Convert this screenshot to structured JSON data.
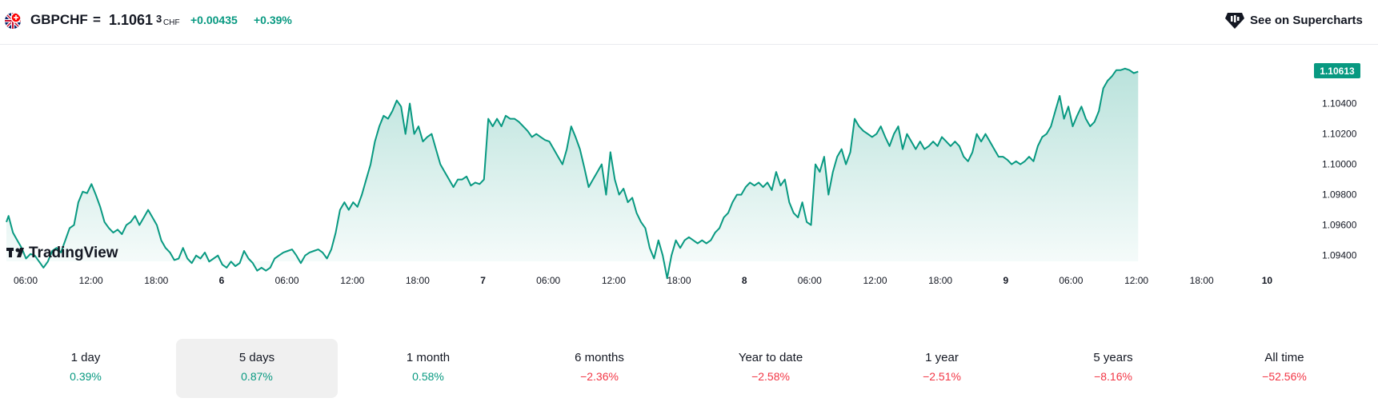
{
  "header": {
    "symbol": "GBPCHF",
    "separator": "=",
    "price_main": "1.1061",
    "price_sup": "3",
    "currency": "CHF",
    "change": "+0.00435",
    "change_pct": "+0.39%",
    "positive_color": "#089981",
    "flag_icon": "gb-ch-flag-icon",
    "supercharts_label": "See on Supercharts",
    "supercharts_icon": "supercharts-icon"
  },
  "chart_data": {
    "type": "area",
    "x_ticks": [
      "06:00",
      "12:00",
      "18:00",
      "6",
      "06:00",
      "12:00",
      "18:00",
      "7",
      "06:00",
      "12:00",
      "18:00",
      "8",
      "06:00",
      "12:00",
      "18:00",
      "9",
      "06:00",
      "12:00",
      "18:00",
      "10"
    ],
    "bold_ticks": [
      "6",
      "7",
      "8",
      "9",
      "10"
    ],
    "y_ticks": [
      "1.09400",
      "1.09600",
      "1.09800",
      "1.10000",
      "1.10200",
      "1.10400"
    ],
    "ylim": [
      1.0925,
      1.1075
    ],
    "last_price_label": "1.10613",
    "line_color": "#089981",
    "fill_color": "#089981",
    "grid": false,
    "watermark": "TradingView",
    "x_unit": "hours from 00:00 of day 5",
    "series": [
      {
        "values": [
          [
            1.5,
            1.0962
          ],
          [
            2,
            1.0966
          ],
          [
            3,
            1.0955
          ],
          [
            4,
            1.095
          ],
          [
            5,
            1.0945
          ],
          [
            6,
            1.0938
          ],
          [
            7,
            1.0941
          ],
          [
            8,
            1.094
          ],
          [
            9,
            1.0936
          ],
          [
            10,
            1.0932
          ],
          [
            11,
            1.0936
          ],
          [
            12,
            1.0943
          ],
          [
            13,
            1.0945
          ],
          [
            14,
            1.0942
          ],
          [
            15,
            1.095
          ],
          [
            16,
            1.0958
          ],
          [
            17,
            1.096
          ],
          [
            18,
            1.0975
          ],
          [
            19,
            1.0982
          ],
          [
            20,
            1.0981
          ],
          [
            21,
            1.0987
          ],
          [
            22,
            1.098
          ],
          [
            23,
            1.0972
          ],
          [
            24,
            1.0962
          ],
          [
            25,
            1.0958
          ],
          [
            26,
            1.0955
          ],
          [
            27,
            1.0957
          ],
          [
            28,
            1.0954
          ],
          [
            29,
            1.096
          ],
          [
            30,
            1.0962
          ],
          [
            31,
            1.0966
          ],
          [
            32,
            1.096
          ],
          [
            33,
            1.0965
          ],
          [
            34,
            1.097
          ],
          [
            35,
            1.0965
          ],
          [
            36,
            1.096
          ],
          [
            37,
            1.095
          ],
          [
            38,
            1.0945
          ],
          [
            39,
            1.0942
          ],
          [
            40,
            1.0937
          ],
          [
            41,
            1.0938
          ],
          [
            42,
            1.0945
          ],
          [
            43,
            1.0938
          ],
          [
            44,
            1.0935
          ],
          [
            45,
            1.094
          ],
          [
            46,
            1.0938
          ],
          [
            47,
            1.0942
          ],
          [
            48,
            1.0936
          ],
          [
            49,
            1.0938
          ],
          [
            50,
            1.094
          ],
          [
            51,
            1.0934
          ],
          [
            52,
            1.0932
          ],
          [
            53,
            1.0936
          ],
          [
            54,
            1.0933
          ],
          [
            55,
            1.0935
          ],
          [
            56,
            1.0943
          ],
          [
            57,
            1.0938
          ],
          [
            58,
            1.0935
          ],
          [
            59,
            1.093
          ],
          [
            60,
            1.0932
          ],
          [
            61,
            1.093
          ],
          [
            62,
            1.0932
          ],
          [
            63,
            1.0938
          ],
          [
            64,
            1.094
          ],
          [
            65,
            1.0942
          ],
          [
            66,
            1.0943
          ],
          [
            67,
            1.0944
          ],
          [
            68,
            1.094
          ],
          [
            69,
            1.0935
          ],
          [
            70,
            1.094
          ],
          [
            71,
            1.0942
          ],
          [
            72,
            1.0943
          ],
          [
            73,
            1.0944
          ],
          [
            74,
            1.0942
          ],
          [
            75,
            1.0938
          ],
          [
            76,
            1.0944
          ],
          [
            77,
            1.0955
          ],
          [
            78,
            1.097
          ],
          [
            79,
            1.0975
          ],
          [
            80,
            1.097
          ],
          [
            81,
            1.0975
          ],
          [
            82,
            1.0972
          ],
          [
            83,
            1.098
          ],
          [
            84,
            1.099
          ],
          [
            85,
            1.1
          ],
          [
            86,
            1.1015
          ],
          [
            87,
            1.1025
          ],
          [
            88,
            1.1032
          ],
          [
            89,
            1.103
          ],
          [
            90,
            1.1035
          ],
          [
            91,
            1.1042
          ],
          [
            92,
            1.1038
          ],
          [
            93,
            1.102
          ],
          [
            94,
            1.104
          ],
          [
            95,
            1.102
          ],
          [
            96,
            1.1025
          ],
          [
            97,
            1.1015
          ],
          [
            98,
            1.1018
          ],
          [
            99,
            1.102
          ],
          [
            100,
            1.101
          ],
          [
            101,
            1.1
          ],
          [
            102,
            1.0995
          ],
          [
            103,
            1.099
          ],
          [
            104,
            1.0985
          ],
          [
            105,
            1.099
          ],
          [
            106,
            1.099
          ],
          [
            107,
            1.0992
          ],
          [
            108,
            1.0986
          ],
          [
            109,
            1.0988
          ],
          [
            110,
            1.0987
          ],
          [
            111,
            1.099
          ],
          [
            112,
            1.103
          ],
          [
            113,
            1.1025
          ],
          [
            114,
            1.103
          ],
          [
            115,
            1.1025
          ],
          [
            116,
            1.1032
          ],
          [
            117,
            1.103
          ],
          [
            118,
            1.103
          ],
          [
            119,
            1.1028
          ],
          [
            120,
            1.1025
          ],
          [
            121,
            1.1022
          ],
          [
            122,
            1.1018
          ],
          [
            123,
            1.102
          ],
          [
            124,
            1.1018
          ],
          [
            125,
            1.1016
          ],
          [
            126,
            1.1015
          ],
          [
            127,
            1.101
          ],
          [
            128,
            1.1005
          ],
          [
            129,
            1.1
          ],
          [
            130,
            1.101
          ],
          [
            131,
            1.1025
          ],
          [
            132,
            1.1018
          ],
          [
            133,
            1.101
          ],
          [
            134,
            1.0998
          ],
          [
            135,
            1.0985
          ],
          [
            136,
            1.099
          ],
          [
            137,
            1.0995
          ],
          [
            138,
            1.1
          ],
          [
            139,
            1.098
          ],
          [
            140,
            1.1008
          ],
          [
            141,
            1.099
          ],
          [
            142,
            1.098
          ],
          [
            143,
            1.0984
          ],
          [
            144,
            1.0975
          ],
          [
            145,
            1.0978
          ],
          [
            146,
            1.0968
          ],
          [
            147,
            1.0962
          ],
          [
            148,
            1.0958
          ],
          [
            149,
            1.0945
          ],
          [
            150,
            1.0938
          ],
          [
            151,
            1.095
          ],
          [
            152,
            1.094
          ],
          [
            153,
            1.0925
          ],
          [
            154,
            1.094
          ],
          [
            155,
            1.095
          ],
          [
            156,
            1.0945
          ],
          [
            157,
            1.095
          ],
          [
            158,
            1.0952
          ],
          [
            159,
            1.095
          ],
          [
            160,
            1.0948
          ],
          [
            161,
            1.095
          ],
          [
            162,
            1.0948
          ],
          [
            163,
            1.095
          ],
          [
            164,
            1.0955
          ],
          [
            165,
            1.0958
          ],
          [
            166,
            1.0965
          ],
          [
            167,
            1.0968
          ],
          [
            168,
            1.0975
          ],
          [
            169,
            1.098
          ],
          [
            170,
            1.098
          ],
          [
            171,
            1.0985
          ],
          [
            172,
            1.0988
          ],
          [
            173,
            1.0986
          ],
          [
            174,
            1.0988
          ],
          [
            175,
            1.0985
          ],
          [
            176,
            1.0988
          ],
          [
            177,
            1.0983
          ],
          [
            178,
            1.0995
          ],
          [
            179,
            1.0986
          ],
          [
            180,
            1.099
          ],
          [
            181,
            1.0975
          ],
          [
            182,
            1.0968
          ],
          [
            183,
            1.0965
          ],
          [
            184,
            1.0975
          ],
          [
            185,
            1.0962
          ],
          [
            186,
            1.096
          ],
          [
            187,
            1.1
          ],
          [
            188,
            1.0995
          ],
          [
            189,
            1.1005
          ],
          [
            190,
            1.098
          ],
          [
            191,
            1.0995
          ],
          [
            192,
            1.1005
          ],
          [
            193,
            1.101
          ],
          [
            194,
            1.1
          ],
          [
            195,
            1.1008
          ],
          [
            196,
            1.103
          ],
          [
            197,
            1.1025
          ],
          [
            198,
            1.1022
          ],
          [
            199,
            1.102
          ],
          [
            200,
            1.1018
          ],
          [
            201,
            1.102
          ],
          [
            202,
            1.1025
          ],
          [
            203,
            1.1018
          ],
          [
            204,
            1.1012
          ],
          [
            205,
            1.102
          ],
          [
            206,
            1.1025
          ],
          [
            207,
            1.101
          ],
          [
            208,
            1.102
          ],
          [
            209,
            1.1015
          ],
          [
            210,
            1.101
          ],
          [
            211,
            1.1015
          ],
          [
            212,
            1.101
          ],
          [
            213,
            1.1012
          ],
          [
            214,
            1.1015
          ],
          [
            215,
            1.1012
          ],
          [
            216,
            1.1018
          ],
          [
            217,
            1.1015
          ],
          [
            218,
            1.1012
          ],
          [
            219,
            1.1015
          ],
          [
            220,
            1.1012
          ],
          [
            221,
            1.1005
          ],
          [
            222,
            1.1002
          ],
          [
            223,
            1.1008
          ],
          [
            224,
            1.102
          ],
          [
            225,
            1.1015
          ],
          [
            226,
            1.102
          ],
          [
            227,
            1.1015
          ],
          [
            228,
            1.101
          ],
          [
            229,
            1.1005
          ],
          [
            230,
            1.1005
          ],
          [
            231,
            1.1003
          ],
          [
            232,
            1.1
          ],
          [
            233,
            1.1002
          ],
          [
            234,
            1.1
          ],
          [
            235,
            1.1002
          ],
          [
            236,
            1.1005
          ],
          [
            237,
            1.1002
          ],
          [
            238,
            1.1012
          ],
          [
            239,
            1.1018
          ],
          [
            240,
            1.102
          ],
          [
            241,
            1.1025
          ],
          [
            242,
            1.1035
          ],
          [
            243,
            1.1045
          ],
          [
            244,
            1.103
          ],
          [
            245,
            1.1038
          ],
          [
            246,
            1.1025
          ],
          [
            247,
            1.1032
          ],
          [
            248,
            1.1038
          ],
          [
            249,
            1.103
          ],
          [
            250,
            1.1025
          ],
          [
            251,
            1.1028
          ],
          [
            252,
            1.1035
          ],
          [
            253,
            1.105
          ],
          [
            254,
            1.1055
          ],
          [
            255,
            1.1058
          ],
          [
            256,
            1.1062
          ],
          [
            257,
            1.1062
          ],
          [
            258,
            1.1063
          ],
          [
            259,
            1.1062
          ],
          [
            260,
            1.106
          ],
          [
            261,
            1.1061
          ]
        ]
      }
    ]
  },
  "periods": [
    {
      "label": "1 day",
      "value": "0.39%",
      "sign": "pos",
      "active": false
    },
    {
      "label": "5 days",
      "value": "0.87%",
      "sign": "pos",
      "active": true
    },
    {
      "label": "1 month",
      "value": "0.58%",
      "sign": "pos",
      "active": false
    },
    {
      "label": "6 months",
      "value": "−2.36%",
      "sign": "neg",
      "active": false
    },
    {
      "label": "Year to date",
      "value": "−2.58%",
      "sign": "neg",
      "active": false
    },
    {
      "label": "1 year",
      "value": "−2.51%",
      "sign": "neg",
      "active": false
    },
    {
      "label": "5 years",
      "value": "−8.16%",
      "sign": "neg",
      "active": false
    },
    {
      "label": "All time",
      "value": "−52.56%",
      "sign": "neg",
      "active": false
    }
  ]
}
